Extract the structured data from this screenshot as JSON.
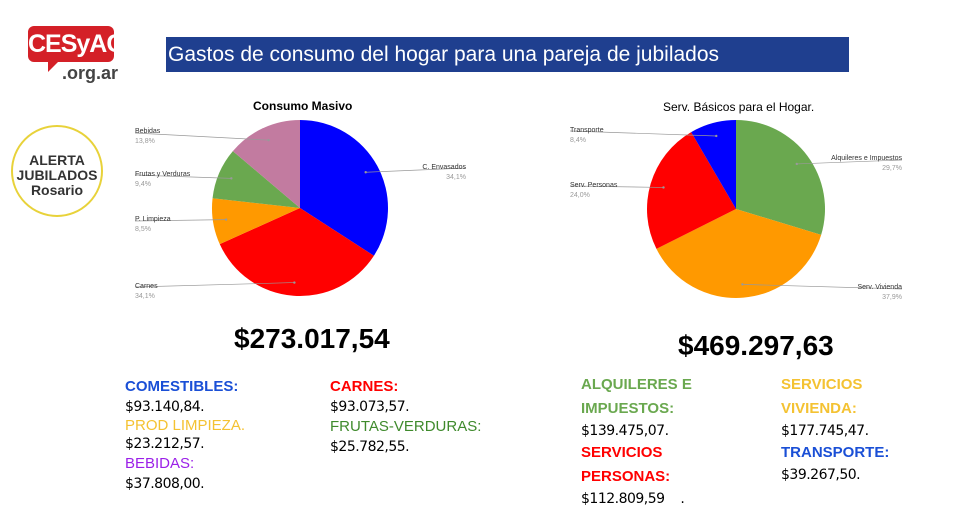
{
  "logo": {
    "name": "CESyAC",
    "domain": ".org.ar"
  },
  "badge": {
    "line1": "ALERTA",
    "line2": "JUBILADOS",
    "line3": "Rosario"
  },
  "banner": {
    "title": "Gastos de consumo del hogar para una pareja de jubilados"
  },
  "chart_data": [
    {
      "type": "pie",
      "title": "Consumo Masivo",
      "slices": [
        {
          "label": "C. Envasados",
          "value": 34.1,
          "pct_label": "34,1%",
          "color": "#0000ff"
        },
        {
          "label": "Carnes",
          "value": 34.1,
          "pct_label": "34,1%",
          "color": "#ff0000"
        },
        {
          "label": "P. Limpieza",
          "value": 8.5,
          "pct_label": "8,5%",
          "color": "#ff9900"
        },
        {
          "label": "Frutas y Verduras",
          "value": 9.4,
          "pct_label": "9,4%",
          "color": "#6aa84f"
        },
        {
          "label": "Bebidas",
          "value": 13.8,
          "pct_label": "13,8%",
          "color": "#c27ba0"
        }
      ]
    },
    {
      "type": "pie",
      "title": "Serv. Básicos para el Hogar.",
      "slices": [
        {
          "label": "Alquileres e Impuestos",
          "value": 29.7,
          "pct_label": "29,7%",
          "color": "#6aa84f"
        },
        {
          "label": "Serv. Vivienda",
          "value": 37.9,
          "pct_label": "37,9%",
          "color": "#ff9900"
        },
        {
          "label": "Serv. Personas",
          "value": 24.0,
          "pct_label": "24,0%",
          "color": "#ff0000"
        },
        {
          "label": "Transporte",
          "value": 8.4,
          "pct_label": "8,4%",
          "color": "#0000ff"
        }
      ]
    }
  ],
  "left_summary": {
    "total": "$273.017,54",
    "items": [
      {
        "label": "COMESTIBLES:",
        "value": "$93.140,84.",
        "color": "#1a4fd6"
      },
      {
        "label": "PROD LIMPIEZA.",
        "value": "$23.212,57.",
        "color": "#f4c232"
      },
      {
        "label": "BEBIDAS:",
        "value": "$37.808,00.",
        "color": "#9b1fe8"
      },
      {
        "label": "CARNES:",
        "value": "$93.073,57.",
        "color": "#ff0000"
      },
      {
        "label": "FRUTAS-VERDURAS:",
        "value": "$25.782,55.",
        "color": "#3f8a2c"
      }
    ]
  },
  "right_summary": {
    "total": "$469.297,63",
    "items": [
      {
        "label": "ALQUILERES E IMPUESTOS:",
        "value": "$139.475,07.",
        "color": "#6aa84f"
      },
      {
        "label": "SERVICIOS PERSONAS:",
        "value": "$112.809,59    .",
        "color": "#ff0000"
      },
      {
        "label": "SERVICIOS VIVIENDA:",
        "value": "$177.745,47.",
        "color": "#f4c232"
      },
      {
        "label": "TRANSPORTE:",
        "value": "$39.267,50.",
        "color": "#1a4fd6"
      }
    ]
  }
}
